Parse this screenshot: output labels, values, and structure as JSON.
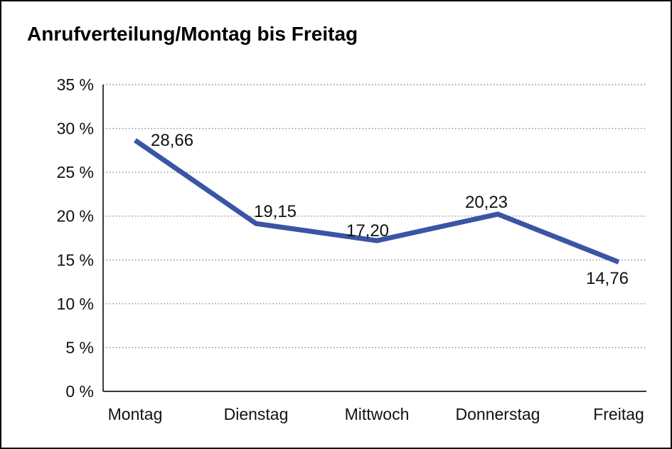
{
  "title": "Anrufverteilung/Montag bis Freitag",
  "chart_data": {
    "type": "line",
    "title": "Anrufverteilung/Montag bis Freitag",
    "categories": [
      "Montag",
      "Dienstag",
      "Mittwoch",
      "Donnerstag",
      "Freitag"
    ],
    "values": [
      28.66,
      19.15,
      17.2,
      20.23,
      14.76
    ],
    "value_labels": [
      "28,66",
      "19,15",
      "17,20",
      "20,23",
      "14,76"
    ],
    "series_name": "Anrufverteilung",
    "xlabel": "",
    "ylabel": "",
    "ylim": [
      0,
      35
    ],
    "ytick_step": 5,
    "ytick_labels": [
      "0 %",
      "5 %",
      "10 %",
      "15 %",
      "20 %",
      "25 %",
      "30 %",
      "35 %"
    ],
    "ytick_suffix": " %",
    "grid": "horizontal-dotted",
    "legend": "none",
    "colors": {
      "line": "#3a55a4",
      "gridline": "#8a8a8a",
      "axis": "#1a1a1a",
      "text": "#111111",
      "background": "#ffffff",
      "frame_border": "#0a0a0a"
    }
  }
}
